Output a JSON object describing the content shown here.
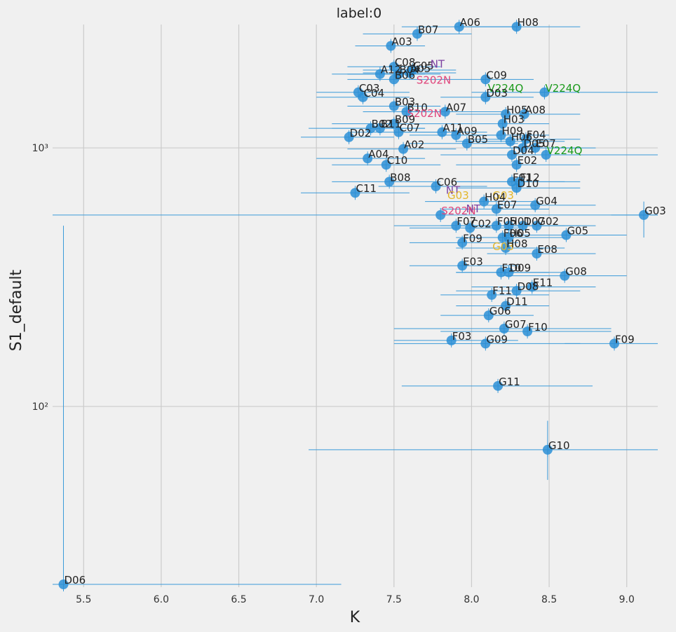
{
  "chart_data": {
    "type": "scatter",
    "title": "label:0",
    "xlabel": "K",
    "ylabel": "S1_default",
    "xlim": [
      5.3,
      9.2
    ],
    "ylim": [
      20,
      3000
    ],
    "yscale": "log",
    "grid": true,
    "xticks": [
      5.5,
      6.0,
      6.5,
      7.0,
      7.5,
      8.0,
      8.5,
      9.0
    ],
    "xtick_labels": [
      "5.5",
      "6.0",
      "6.5",
      "7.0",
      "7.5",
      "8.0",
      "8.5",
      "9.0"
    ],
    "yticks": [
      100,
      1000
    ],
    "ytick_labels": [
      "10²",
      "10³"
    ],
    "colors": {
      "point": "#2b8fd6",
      "errorbar": "#3a9ad9",
      "label_default": "#222222",
      "purple": "#7b3fa0",
      "pink": "#e0457b",
      "green": "#1a9a1a",
      "gold": "#e3b72b"
    },
    "points": [
      {
        "label": "A06",
        "x": 7.92,
        "y": 2940,
        "xerr": [
          7.55,
          8.3
        ],
        "color": "label_default"
      },
      {
        "label": "H08",
        "x": 8.29,
        "y": 2940,
        "xerr": [
          7.9,
          8.7
        ],
        "color": "label_default"
      },
      {
        "label": "B07",
        "x": 7.65,
        "y": 2760,
        "xerr": [
          7.3,
          8.0
        ],
        "color": "label_default"
      },
      {
        "label": "A03",
        "x": 7.48,
        "y": 2480,
        "xerr": [
          7.25,
          7.7
        ],
        "color": "label_default"
      },
      {
        "label": "C08",
        "x": 7.5,
        "y": 2060,
        "xerr": [
          7.2,
          7.8
        ],
        "color": "label_default"
      },
      {
        "label": "C05",
        "x": 7.62,
        "y": 2000,
        "xerr": [
          7.3,
          7.9
        ],
        "color": "label_default"
      },
      {
        "label": "NT",
        "x": 7.73,
        "y": 2030,
        "xerr": null,
        "color": "purple"
      },
      {
        "label": "A12",
        "x": 7.41,
        "y": 1930,
        "xerr": [
          7.1,
          7.7
        ],
        "color": "label_default"
      },
      {
        "label": "B04",
        "x": 7.53,
        "y": 1930,
        "xerr": [
          7.2,
          7.8
        ],
        "color": "label_default"
      },
      {
        "label": "A05",
        "x": 7.6,
        "y": 1950,
        "xerr": [
          7.3,
          7.9
        ],
        "color": "label_default"
      },
      {
        "label": "B06",
        "x": 7.5,
        "y": 1840,
        "xerr": [
          7.2,
          7.8
        ],
        "color": "label_default"
      },
      {
        "label": "S202N",
        "x": 7.64,
        "y": 1760,
        "xerr": null,
        "color": "pink"
      },
      {
        "label": "C09",
        "x": 8.09,
        "y": 1840,
        "xerr": [
          7.8,
          8.4
        ],
        "color": "label_default"
      },
      {
        "label": "V224Q",
        "x": 8.1,
        "y": 1640,
        "xerr": null,
        "color": "green"
      },
      {
        "label": "V224Q",
        "x": 8.47,
        "y": 1640,
        "xerr": [
          8.0,
          9.2
        ],
        "color": "green"
      },
      {
        "label": "C03",
        "x": 7.27,
        "y": 1640,
        "xerr": [
          7.0,
          7.6
        ],
        "color": "label_default"
      },
      {
        "label": "C04",
        "x": 7.3,
        "y": 1570,
        "xerr": [
          7.0,
          7.6
        ],
        "color": "label_default"
      },
      {
        "label": "D03",
        "x": 8.09,
        "y": 1570,
        "xerr": [
          7.8,
          8.4
        ],
        "color": "label_default"
      },
      {
        "label": "B03",
        "x": 7.5,
        "y": 1450,
        "xerr": [
          7.2,
          7.8
        ],
        "color": "label_default"
      },
      {
        "label": "B10",
        "x": 7.58,
        "y": 1380,
        "xerr": [
          7.3,
          7.9
        ],
        "color": "label_default"
      },
      {
        "label": "A07",
        "x": 7.83,
        "y": 1380,
        "xerr": [
          7.5,
          8.2
        ],
        "color": "label_default"
      },
      {
        "label": "H05",
        "x": 8.22,
        "y": 1350,
        "xerr": [
          7.9,
          8.6
        ],
        "color": "label_default"
      },
      {
        "label": "A08",
        "x": 8.34,
        "y": 1350,
        "xerr": [
          8.0,
          8.7
        ],
        "color": "label_default"
      },
      {
        "label": "S202N",
        "x": 7.58,
        "y": 1310,
        "xerr": null,
        "color": "pink"
      },
      {
        "label": "B09",
        "x": 7.5,
        "y": 1240,
        "xerr": [
          7.1,
          7.9
        ],
        "color": "label_default"
      },
      {
        "label": "H03",
        "x": 8.2,
        "y": 1240,
        "xerr": [
          7.9,
          8.5
        ],
        "color": "label_default"
      },
      {
        "label": "B02",
        "x": 7.35,
        "y": 1190,
        "xerr": [
          6.95,
          7.7
        ],
        "color": "label_default"
      },
      {
        "label": "B11",
        "x": 7.41,
        "y": 1190,
        "xerr": [
          7.1,
          7.7
        ],
        "color": "label_default"
      },
      {
        "label": "C07",
        "x": 7.53,
        "y": 1150,
        "xerr": [
          7.2,
          7.9
        ],
        "color": "label_default"
      },
      {
        "label": "D02",
        "x": 7.21,
        "y": 1100,
        "xerr": [
          6.9,
          7.5
        ],
        "color": "label_default"
      },
      {
        "label": "A11",
        "x": 7.81,
        "y": 1150,
        "xerr": [
          7.5,
          8.1
        ],
        "color": "label_default"
      },
      {
        "label": "A09",
        "x": 7.9,
        "y": 1120,
        "xerr": [
          7.6,
          8.2
        ],
        "color": "label_default"
      },
      {
        "label": "H09",
        "x": 8.19,
        "y": 1120,
        "xerr": [
          7.9,
          8.5
        ],
        "color": "label_default"
      },
      {
        "label": "B05",
        "x": 7.97,
        "y": 1040,
        "xerr": [
          7.6,
          8.3
        ],
        "color": "label_default"
      },
      {
        "label": "H06",
        "x": 8.25,
        "y": 1060,
        "xerr": [
          7.9,
          8.6
        ],
        "color": "label_default"
      },
      {
        "label": "F04",
        "x": 8.35,
        "y": 1080,
        "xerr": [
          8.0,
          8.7
        ],
        "color": "label_default"
      },
      {
        "label": "A02",
        "x": 7.56,
        "y": 990,
        "xerr": [
          7.2,
          7.9
        ],
        "color": "label_default"
      },
      {
        "label": "D05",
        "x": 8.33,
        "y": 1000,
        "xerr": [
          8.0,
          8.7
        ],
        "color": "label_default"
      },
      {
        "label": "E07",
        "x": 8.41,
        "y": 1000,
        "xerr": [
          8.1,
          8.8
        ],
        "color": "label_default"
      },
      {
        "label": "D04",
        "x": 8.26,
        "y": 940,
        "xerr": [
          7.9,
          8.6
        ],
        "color": "label_default"
      },
      {
        "label": "V224Q",
        "x": 8.48,
        "y": 940,
        "xerr": [
          7.8,
          9.2
        ],
        "color": "green"
      },
      {
        "label": "A04",
        "x": 7.33,
        "y": 910,
        "xerr": [
          7.0,
          7.7
        ],
        "color": "label_default"
      },
      {
        "label": "C10",
        "x": 7.45,
        "y": 860,
        "xerr": [
          7.1,
          7.8
        ],
        "color": "label_default"
      },
      {
        "label": "E02",
        "x": 8.29,
        "y": 860,
        "xerr": [
          7.9,
          8.7
        ],
        "color": "label_default"
      },
      {
        "label": "B08",
        "x": 7.47,
        "y": 740,
        "xerr": [
          7.1,
          7.8
        ],
        "color": "label_default"
      },
      {
        "label": "F01",
        "x": 8.26,
        "y": 740,
        "xerr": [
          7.9,
          8.6
        ],
        "color": "label_default"
      },
      {
        "label": "F12",
        "x": 8.31,
        "y": 740,
        "xerr": [
          7.9,
          8.7
        ],
        "color": "label_default"
      },
      {
        "label": "C06",
        "x": 7.77,
        "y": 710,
        "xerr": [
          7.4,
          8.1
        ],
        "color": "label_default"
      },
      {
        "label": "D10",
        "x": 8.29,
        "y": 700,
        "xerr": [
          7.9,
          8.7
        ],
        "color": "label_default"
      },
      {
        "label": "C11",
        "x": 7.25,
        "y": 670,
        "xerr": [
          6.9,
          7.6
        ],
        "color": "label_default"
      },
      {
        "label": "NT",
        "x": 7.83,
        "y": 660,
        "xerr": null,
        "color": "purple"
      },
      {
        "label": "G03",
        "x": 7.84,
        "y": 630,
        "xerr": null,
        "color": "gold"
      },
      {
        "label": "G03",
        "x": 8.13,
        "y": 630,
        "xerr": null,
        "color": "gold"
      },
      {
        "label": "H04",
        "x": 8.08,
        "y": 620,
        "xerr": [
          7.7,
          8.4
        ],
        "color": "label_default"
      },
      {
        "label": "G04",
        "x": 8.41,
        "y": 600,
        "xerr": [
          8.1,
          8.8
        ],
        "color": "label_default"
      },
      {
        "label": "E07",
        "x": 8.16,
        "y": 580,
        "xerr": [
          7.8,
          8.5
        ],
        "color": "label_default"
      },
      {
        "label": "NT",
        "x": 7.96,
        "y": 560,
        "xerr": null,
        "color": "purple"
      },
      {
        "label": "S202N",
        "x": 7.8,
        "y": 550,
        "xerr": [
          5.3,
          9.2
        ],
        "color": "pink"
      },
      {
        "label": "G03",
        "x": 9.11,
        "y": 550,
        "xerr": [
          8.9,
          9.2
        ],
        "color": "label_default"
      },
      {
        "label": "F07",
        "x": 7.9,
        "y": 500,
        "xerr": [
          7.5,
          8.3
        ],
        "color": "label_default"
      },
      {
        "label": "C02",
        "x": 7.99,
        "y": 490,
        "xerr": [
          7.6,
          8.3
        ],
        "color": "label_default"
      },
      {
        "label": "F05",
        "x": 8.16,
        "y": 500,
        "xerr": [
          7.8,
          8.5
        ],
        "color": "label_default"
      },
      {
        "label": "H01",
        "x": 8.24,
        "y": 500,
        "xerr": [
          7.9,
          8.6
        ],
        "color": "label_default"
      },
      {
        "label": "D07",
        "x": 8.33,
        "y": 500,
        "xerr": [
          8.0,
          8.7
        ],
        "color": "label_default"
      },
      {
        "label": "G02",
        "x": 8.42,
        "y": 500,
        "xerr": [
          8.0,
          8.8
        ],
        "color": "label_default"
      },
      {
        "label": "G05",
        "x": 8.61,
        "y": 460,
        "xerr": [
          8.2,
          9.0
        ],
        "color": "label_default"
      },
      {
        "label": "F06",
        "x": 8.2,
        "y": 450,
        "xerr": [
          7.9,
          8.5
        ],
        "color": "label_default"
      },
      {
        "label": "H05",
        "x": 8.24,
        "y": 450,
        "xerr": [
          7.9,
          8.6
        ],
        "color": "label_default"
      },
      {
        "label": "F09",
        "x": 7.94,
        "y": 430,
        "xerr": [
          7.6,
          8.3
        ],
        "color": "label_default"
      },
      {
        "label": "G03",
        "x": 8.13,
        "y": 400,
        "xerr": null,
        "color": "gold"
      },
      {
        "label": "E08",
        "x": 8.42,
        "y": 390,
        "xerr": [
          8.1,
          8.8
        ],
        "color": "label_default"
      },
      {
        "label": "H08",
        "x": 8.22,
        "y": 410,
        "xerr": [
          7.9,
          8.6
        ],
        "color": "label_default"
      },
      {
        "label": "E03",
        "x": 7.94,
        "y": 350,
        "xerr": [
          7.6,
          8.3
        ],
        "color": "label_default"
      },
      {
        "label": "F10",
        "x": 8.19,
        "y": 330,
        "xerr": [
          7.9,
          8.5
        ],
        "color": "label_default"
      },
      {
        "label": "D09",
        "x": 8.24,
        "y": 330,
        "xerr": [
          7.9,
          8.6
        ],
        "color": "label_default"
      },
      {
        "label": "G08",
        "x": 8.6,
        "y": 320,
        "xerr": [
          8.2,
          9.0
        ],
        "color": "label_default"
      },
      {
        "label": "E11",
        "x": 8.39,
        "y": 290,
        "xerr": [
          8.0,
          8.8
        ],
        "color": "label_default"
      },
      {
        "label": "D08",
        "x": 8.29,
        "y": 280,
        "xerr": [
          7.9,
          8.7
        ],
        "color": "label_default"
      },
      {
        "label": "F11",
        "x": 8.13,
        "y": 270,
        "xerr": [
          7.8,
          8.5
        ],
        "color": "label_default"
      },
      {
        "label": "D11",
        "x": 8.22,
        "y": 245,
        "xerr": [
          7.9,
          8.5
        ],
        "color": "label_default"
      },
      {
        "label": "G06",
        "x": 8.11,
        "y": 225,
        "xerr": [
          7.8,
          8.4
        ],
        "color": "label_default"
      },
      {
        "label": "G07",
        "x": 8.21,
        "y": 200,
        "xerr": [
          7.5,
          8.9
        ],
        "color": "label_default"
      },
      {
        "label": "F10",
        "x": 8.36,
        "y": 195,
        "xerr": [
          7.8,
          8.9
        ],
        "color": "label_default"
      },
      {
        "label": "F03",
        "x": 7.87,
        "y": 180,
        "xerr": [
          7.5,
          8.3
        ],
        "color": "label_default"
      },
      {
        "label": "G09",
        "x": 8.09,
        "y": 175,
        "xerr": [
          7.5,
          8.7
        ],
        "color": "label_default"
      },
      {
        "label": "F09",
        "x": 8.92,
        "y": 175,
        "xerr": [
          8.6,
          9.2
        ],
        "color": "label_default"
      },
      {
        "label": "G11",
        "x": 8.17,
        "y": 120,
        "xerr": [
          7.55,
          8.78
        ],
        "color": "label_default"
      },
      {
        "label": "G10",
        "x": 8.49,
        "y": 68,
        "xerr": [
          6.95,
          9.2
        ],
        "color": "label_default"
      },
      {
        "label": "D06",
        "x": 5.37,
        "y": 20.5,
        "xerr": [
          5.3,
          7.16
        ],
        "color": "label_default"
      }
    ]
  }
}
